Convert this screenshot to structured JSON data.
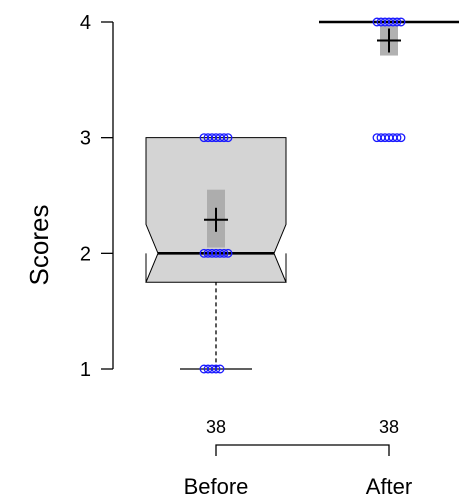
{
  "chart_data": {
    "type": "box",
    "ylabel": "Scores",
    "ylim": [
      1,
      4
    ],
    "yticks": [
      1,
      2,
      3,
      4
    ],
    "categories": [
      "Before",
      "After"
    ],
    "groups": [
      {
        "name": "Before",
        "n": "38",
        "min": 1,
        "q1": 2,
        "median": 2,
        "q3": 3,
        "max": 3,
        "mean": 2.29,
        "mean_ci": [
          2.05,
          2.55
        ],
        "notch": [
          1.75,
          2.25
        ],
        "points": [
          1,
          2,
          3
        ]
      },
      {
        "name": "After",
        "n": "38",
        "min": 4,
        "q1": 4,
        "median": 4,
        "q3": 4,
        "max": 4,
        "mean": 3.84,
        "mean_ci": [
          3.71,
          3.97
        ],
        "notch": [
          4,
          4
        ],
        "points": [
          3,
          4
        ]
      }
    ],
    "colors": {
      "box_fill": "#d4d4d4",
      "ci_fill": "#a9a9a9",
      "points": "#1a1aff",
      "line": "#000000"
    }
  }
}
